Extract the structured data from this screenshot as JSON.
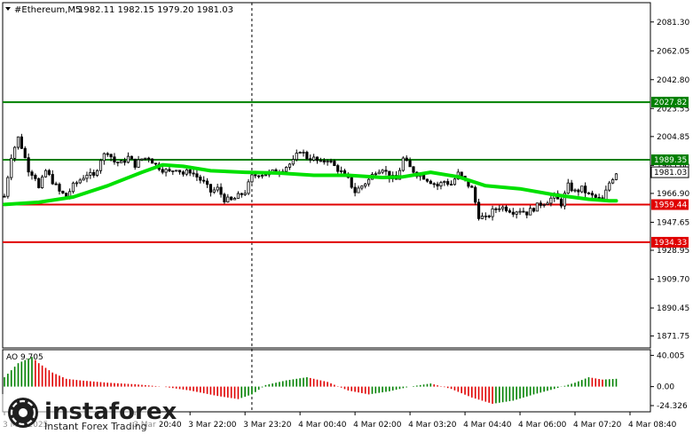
{
  "header": {
    "symbol": "#Ethereum,M5",
    "ohlc": "1982.11 1982.15 1979.20 1981.03"
  },
  "colors": {
    "candle": "#000000",
    "ma": "#00e000",
    "support": "#e00000",
    "resistance": "#008000",
    "ao_up": "#008000",
    "ao_down": "#e00000",
    "current_price": "#000000"
  },
  "watermark": {
    "brand": "instaforex",
    "tagline": "Instant Forex Trading",
    "icon": "instaforex-logo-icon"
  },
  "chart_data": {
    "type": "candlestick",
    "title": "",
    "price_axis": {
      "ylim": [
        1865.0,
        2093.0
      ],
      "ticks": [
        {
          "v": 2081.3,
          "t": "2081.30"
        },
        {
          "v": 2062.05,
          "t": "2062.05"
        },
        {
          "v": 2042.8,
          "t": "2042.80"
        },
        {
          "v": 2023.55,
          "t": "2023.55"
        },
        {
          "v": 2004.85,
          "t": "2004.85"
        },
        {
          "v": 1985.6,
          "t": "1985.60"
        },
        {
          "v": 1966.9,
          "t": "1966.90"
        },
        {
          "v": 1947.65,
          "t": "1947.65"
        },
        {
          "v": 1928.95,
          "t": "1928.95"
        },
        {
          "v": 1909.7,
          "t": "1909.70"
        },
        {
          "v": 1890.45,
          "t": "1890.45"
        },
        {
          "v": 1871.75,
          "t": "1871.75"
        }
      ]
    },
    "time_axis": {
      "ticks": [
        {
          "i": 0,
          "t": "3 Mar 2025"
        },
        {
          "i": 38,
          "t": "3 Mar 20:40"
        },
        {
          "i": 54,
          "t": "3 Mar 22:00"
        },
        {
          "i": 70,
          "t": "3 Mar 23:20"
        },
        {
          "i": 86,
          "t": "4 Mar 00:40"
        },
        {
          "i": 102,
          "t": "4 Mar 02:00"
        },
        {
          "i": 118,
          "t": "4 Mar 03:20"
        },
        {
          "i": 134,
          "t": "4 Mar 04:40"
        },
        {
          "i": 150,
          "t": "4 Mar 06:00"
        },
        {
          "i": 166,
          "t": "4 Mar 07:20"
        },
        {
          "i": 182,
          "t": "4 Mar 08:40"
        }
      ]
    },
    "levels": [
      {
        "value": 2027.82,
        "label": "2027.82",
        "role": "resistance",
        "color": "#008000"
      },
      {
        "value": 1989.35,
        "label": "1989.35",
        "role": "resistance",
        "color": "#008000"
      },
      {
        "value": 1959.44,
        "label": "1959.44",
        "role": "support",
        "color": "#e00000"
      },
      {
        "value": 1934.33,
        "label": "1934.33",
        "role": "support",
        "color": "#e00000"
      }
    ],
    "current_price": {
      "value": 1981.03,
      "label": "1981.03"
    },
    "separator_index": 72,
    "price_series": [
      {
        "i": 0,
        "p": 1965
      },
      {
        "i": 2,
        "p": 1992
      },
      {
        "i": 4,
        "p": 2004
      },
      {
        "i": 5,
        "p": 1998
      },
      {
        "i": 7,
        "p": 1983
      },
      {
        "i": 9,
        "p": 1978
      },
      {
        "i": 10,
        "p": 1970
      },
      {
        "i": 12,
        "p": 1982
      },
      {
        "i": 14,
        "p": 1975
      },
      {
        "i": 16,
        "p": 1968
      },
      {
        "i": 18,
        "p": 1965
      },
      {
        "i": 20,
        "p": 1972
      },
      {
        "i": 22,
        "p": 1976
      },
      {
        "i": 24,
        "p": 1980
      },
      {
        "i": 26,
        "p": 1978
      },
      {
        "i": 28,
        "p": 1990
      },
      {
        "i": 30,
        "p": 1995
      },
      {
        "i": 32,
        "p": 1988
      },
      {
        "i": 34,
        "p": 1987
      },
      {
        "i": 36,
        "p": 1991
      },
      {
        "i": 38,
        "p": 1986
      },
      {
        "i": 40,
        "p": 1990
      },
      {
        "i": 42,
        "p": 1991
      },
      {
        "i": 44,
        "p": 1986
      },
      {
        "i": 46,
        "p": 1983
      },
      {
        "i": 48,
        "p": 1981
      },
      {
        "i": 50,
        "p": 1984
      },
      {
        "i": 52,
        "p": 1980
      },
      {
        "i": 54,
        "p": 1982
      },
      {
        "i": 56,
        "p": 1978
      },
      {
        "i": 58,
        "p": 1974
      },
      {
        "i": 60,
        "p": 1968
      },
      {
        "i": 62,
        "p": 1970
      },
      {
        "i": 64,
        "p": 1963
      },
      {
        "i": 66,
        "p": 1962
      },
      {
        "i": 68,
        "p": 1965
      },
      {
        "i": 70,
        "p": 1968
      },
      {
        "i": 72,
        "p": 1978
      },
      {
        "i": 74,
        "p": 1980
      },
      {
        "i": 76,
        "p": 1980
      },
      {
        "i": 78,
        "p": 1981
      },
      {
        "i": 80,
        "p": 1982
      },
      {
        "i": 82,
        "p": 1985
      },
      {
        "i": 84,
        "p": 1988
      },
      {
        "i": 86,
        "p": 1996
      },
      {
        "i": 88,
        "p": 1991
      },
      {
        "i": 90,
        "p": 1990
      },
      {
        "i": 92,
        "p": 1987
      },
      {
        "i": 94,
        "p": 1990
      },
      {
        "i": 96,
        "p": 1985
      },
      {
        "i": 98,
        "p": 1981
      },
      {
        "i": 100,
        "p": 1976
      },
      {
        "i": 102,
        "p": 1968
      },
      {
        "i": 104,
        "p": 1972
      },
      {
        "i": 106,
        "p": 1976
      },
      {
        "i": 108,
        "p": 1982
      },
      {
        "i": 110,
        "p": 1984
      },
      {
        "i": 112,
        "p": 1978
      },
      {
        "i": 114,
        "p": 1976
      },
      {
        "i": 116,
        "p": 1990
      },
      {
        "i": 118,
        "p": 1984
      },
      {
        "i": 120,
        "p": 1980
      },
      {
        "i": 122,
        "p": 1978
      },
      {
        "i": 124,
        "p": 1975
      },
      {
        "i": 126,
        "p": 1972
      },
      {
        "i": 128,
        "p": 1975
      },
      {
        "i": 130,
        "p": 1973
      },
      {
        "i": 132,
        "p": 1980
      },
      {
        "i": 134,
        "p": 1975
      },
      {
        "i": 136,
        "p": 1970
      },
      {
        "i": 138,
        "p": 1952
      },
      {
        "i": 140,
        "p": 1950
      },
      {
        "i": 142,
        "p": 1955
      },
      {
        "i": 144,
        "p": 1958
      },
      {
        "i": 146,
        "p": 1957
      },
      {
        "i": 148,
        "p": 1955
      },
      {
        "i": 150,
        "p": 1956
      },
      {
        "i": 152,
        "p": 1954
      },
      {
        "i": 154,
        "p": 1957
      },
      {
        "i": 156,
        "p": 1960
      },
      {
        "i": 158,
        "p": 1962
      },
      {
        "i": 160,
        "p": 1965
      },
      {
        "i": 162,
        "p": 1960
      },
      {
        "i": 164,
        "p": 1972
      },
      {
        "i": 166,
        "p": 1968
      },
      {
        "i": 168,
        "p": 1970
      },
      {
        "i": 170,
        "p": 1966
      },
      {
        "i": 172,
        "p": 1964
      },
      {
        "i": 174,
        "p": 1962
      },
      {
        "i": 176,
        "p": 1974
      },
      {
        "i": 178,
        "p": 1981
      }
    ],
    "ma_series": [
      {
        "i": 0,
        "p": 1959.5
      },
      {
        "i": 10,
        "p": 1961
      },
      {
        "i": 20,
        "p": 1964.5
      },
      {
        "i": 30,
        "p": 1972
      },
      {
        "i": 40,
        "p": 1981
      },
      {
        "i": 46,
        "p": 1986
      },
      {
        "i": 52,
        "p": 1985
      },
      {
        "i": 60,
        "p": 1982
      },
      {
        "i": 70,
        "p": 1981
      },
      {
        "i": 80,
        "p": 1980.5
      },
      {
        "i": 90,
        "p": 1979
      },
      {
        "i": 100,
        "p": 1979
      },
      {
        "i": 110,
        "p": 1977.5
      },
      {
        "i": 116,
        "p": 1978
      },
      {
        "i": 124,
        "p": 1981
      },
      {
        "i": 132,
        "p": 1978
      },
      {
        "i": 140,
        "p": 1972
      },
      {
        "i": 150,
        "p": 1970
      },
      {
        "i": 160,
        "p": 1966
      },
      {
        "i": 170,
        "p": 1963
      },
      {
        "i": 176,
        "p": 1962
      },
      {
        "i": 178,
        "p": 1962
      }
    ],
    "ao": {
      "label": "AO 9.705",
      "ylim": [
        -30.0,
        45.0
      ],
      "ticks": [
        {
          "v": 40.005,
          "t": "40.005"
        },
        {
          "v": 0.0,
          "t": "0.00"
        },
        {
          "v": -24.326,
          "t": "-24.326"
        }
      ],
      "series": [
        {
          "i": 0,
          "v": 12
        },
        {
          "i": 4,
          "v": 30
        },
        {
          "i": 8,
          "v": 38
        },
        {
          "i": 10,
          "v": 30
        },
        {
          "i": 14,
          "v": 18
        },
        {
          "i": 18,
          "v": 10
        },
        {
          "i": 22,
          "v": 8
        },
        {
          "i": 30,
          "v": 5
        },
        {
          "i": 38,
          "v": 3
        },
        {
          "i": 46,
          "v": 0
        },
        {
          "i": 54,
          "v": -5
        },
        {
          "i": 62,
          "v": -12
        },
        {
          "i": 68,
          "v": -16
        },
        {
          "i": 72,
          "v": -10
        },
        {
          "i": 76,
          "v": 2
        },
        {
          "i": 82,
          "v": 8
        },
        {
          "i": 88,
          "v": 12
        },
        {
          "i": 94,
          "v": 6
        },
        {
          "i": 100,
          "v": -5
        },
        {
          "i": 106,
          "v": -10
        },
        {
          "i": 112,
          "v": -6
        },
        {
          "i": 118,
          "v": 0
        },
        {
          "i": 124,
          "v": 4
        },
        {
          "i": 130,
          "v": -3
        },
        {
          "i": 136,
          "v": -14
        },
        {
          "i": 142,
          "v": -22
        },
        {
          "i": 148,
          "v": -18
        },
        {
          "i": 154,
          "v": -10
        },
        {
          "i": 160,
          "v": -3
        },
        {
          "i": 166,
          "v": 5
        },
        {
          "i": 170,
          "v": 12
        },
        {
          "i": 174,
          "v": 9
        },
        {
          "i": 178,
          "v": 10
        }
      ]
    }
  }
}
